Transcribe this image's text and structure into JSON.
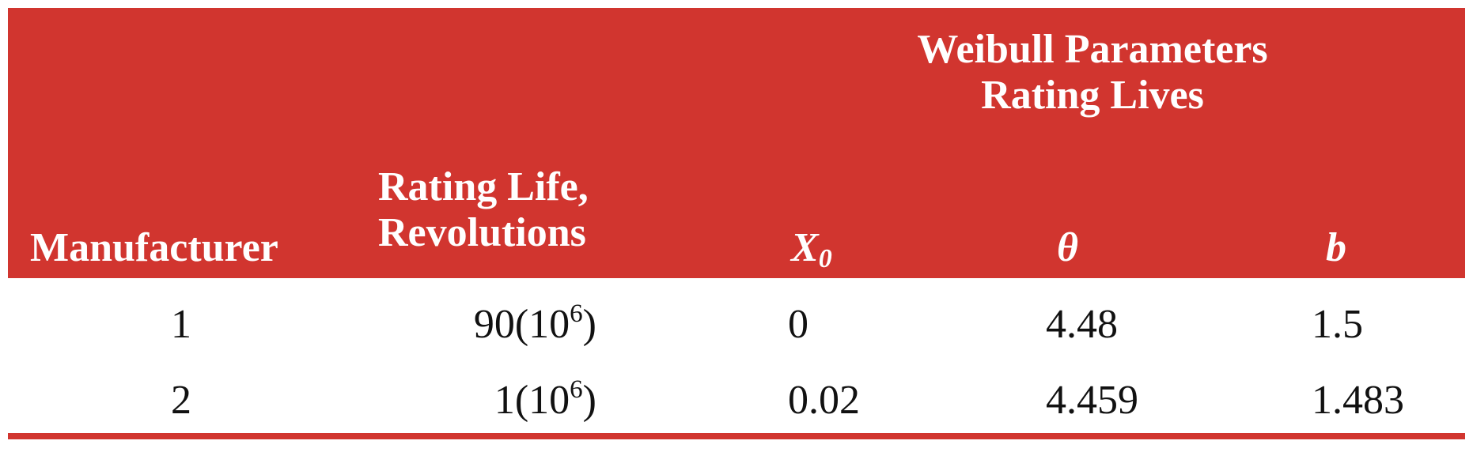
{
  "table": {
    "group_header_line1": "Weibull Parameters",
    "group_header_line2": "Rating Lives",
    "columns": {
      "manufacturer": "Manufacturer",
      "rating_life_line1": "Rating Life,",
      "rating_life_line2": "Revolutions",
      "x0_main": "X",
      "x0_sub": "0",
      "theta": "θ",
      "b": "b"
    },
    "rows": [
      {
        "manufacturer": "1",
        "rating_life_base": "90(10",
        "rating_life_exp": "6",
        "rating_life_close": ")",
        "x0": "0",
        "theta": "4.48",
        "b": "1.5"
      },
      {
        "manufacturer": "2",
        "rating_life_base": "1(10",
        "rating_life_exp": "6",
        "rating_life_close": ")",
        "x0": "0.02",
        "theta": "4.459",
        "b": "1.483"
      }
    ],
    "colors": {
      "header_background": "#d1352f",
      "header_text": "#ffffff",
      "body_text": "#111111",
      "rule": "#d1352f"
    }
  }
}
